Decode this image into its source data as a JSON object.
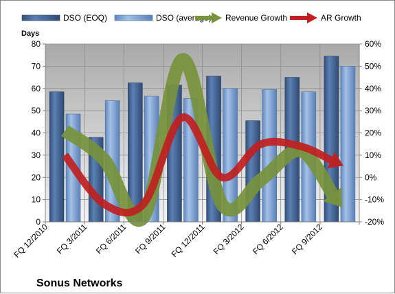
{
  "chart_data": {
    "type": "bar",
    "title": "Sonus Networks",
    "ylabel": "Days",
    "categories": [
      "FQ 12/2010",
      "FQ 3/2011",
      "FQ 6/2011",
      "FQ 9/2011",
      "FQ 12/2011",
      "FQ 3/2012",
      "FQ 6/2012",
      "FQ 9/2012"
    ],
    "ylim": [
      0,
      80
    ],
    "yticks": [
      "0",
      "10",
      "20",
      "30",
      "40",
      "50",
      "60",
      "70",
      "80"
    ],
    "y2lim": [
      -20,
      60
    ],
    "y2ticks": [
      "-20%",
      "-10%",
      "0%",
      "10%",
      "20%",
      "30%",
      "40%",
      "50%",
      "60%"
    ],
    "series": [
      {
        "name": "DSO (EOQ)",
        "kind": "bar",
        "axis": "left",
        "color": "#4a6d9e",
        "values": [
          58.5,
          38,
          62.5,
          61.5,
          65.5,
          45.5,
          65,
          74.5
        ]
      },
      {
        "name": "DSO (average)",
        "kind": "bar",
        "axis": "left",
        "color": "#7fa3d1",
        "values": [
          48.5,
          54.5,
          56.5,
          55.5,
          60,
          59.5,
          58.5,
          70
        ]
      },
      {
        "name": "Revenue Growth",
        "kind": "line",
        "axis": "right",
        "color": "#77933c",
        "values": [
          21,
          8,
          -18,
          53,
          -12,
          -1,
          12,
          -12
        ]
      },
      {
        "name": "AR Growth",
        "kind": "line",
        "axis": "right",
        "color": "#c0201f",
        "values": [
          10,
          -12,
          -12,
          27,
          0,
          15,
          14,
          6
        ]
      }
    ],
    "grid": true,
    "legend": "top"
  }
}
